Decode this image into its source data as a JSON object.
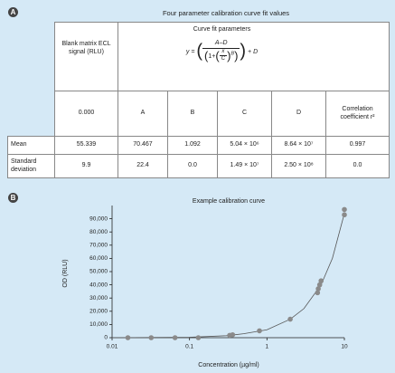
{
  "panel_a": {
    "label": "A",
    "title": "Four parameter calibration curve fit values",
    "table": {
      "header": {
        "blank": "Blank matrix ECL signal (RLU)",
        "fit": "Curve fit parameters",
        "formula": {
          "lhs": "y =",
          "numerator": "A–D",
          "den_prefix": "1+",
          "x": "x",
          "c": "C",
          "b": "B",
          "tail": "+ D"
        }
      },
      "subheader": [
        "0.000",
        "A",
        "B",
        "C",
        "D",
        "Correlation coefficient r²"
      ],
      "rows": [
        [
          "Mean",
          "55.339",
          "70.467",
          "1.092",
          "5.04 × 10⁶",
          "8.64 × 10⁷",
          "0.997"
        ],
        [
          "Standard deviation",
          "9.9",
          "22.4",
          "0.0",
          "1.49 × 10⁷",
          "2.50 × 10⁸",
          "0.0"
        ]
      ]
    }
  },
  "panel_b": {
    "label": "B"
  },
  "chart_data": {
    "type": "scatter",
    "title": "Example calibration curve",
    "x_label": "Concentration (µg/ml)",
    "y_label": "OD (RLU)",
    "x_log": true,
    "xlim": [
      0.01,
      10
    ],
    "xticks": [
      0.01,
      0.1,
      1,
      10
    ],
    "ylim": [
      0,
      100000
    ],
    "yticks": [
      0,
      {
        "value": 10000,
        "label": "10,000"
      },
      {
        "value": 20000,
        "label": "20,000"
      },
      {
        "value": 30000,
        "label": "30,000"
      },
      {
        "value": 40000,
        "label": "40,000"
      },
      {
        "value": 50000,
        "label": "50,000"
      },
      {
        "value": 60000,
        "label": "60,000"
      },
      {
        "value": 70000,
        "label": "70,000"
      },
      {
        "value": 80000,
        "label": "80,000"
      },
      {
        "value": 90000,
        "label": "90,000"
      }
    ],
    "points": {
      "color": "#8a8a8a",
      "x": [
        0.016,
        0.032,
        0.065,
        0.13,
        0.33,
        0.36,
        0.8,
        2.0,
        4.5,
        4.6,
        4.8,
        5.0,
        10,
        10
      ],
      "values": [
        0,
        0,
        0,
        0,
        1800,
        2200,
        5200,
        14000,
        34000,
        37000,
        40000,
        43000,
        93000,
        97000
      ]
    },
    "curve": {
      "color": "#555555",
      "x": [
        0.01,
        0.1,
        0.3,
        0.5,
        1,
        2,
        3,
        5,
        7,
        10
      ],
      "values": [
        0,
        300,
        1500,
        3000,
        6000,
        14000,
        22000,
        40000,
        60000,
        94000
      ]
    }
  }
}
